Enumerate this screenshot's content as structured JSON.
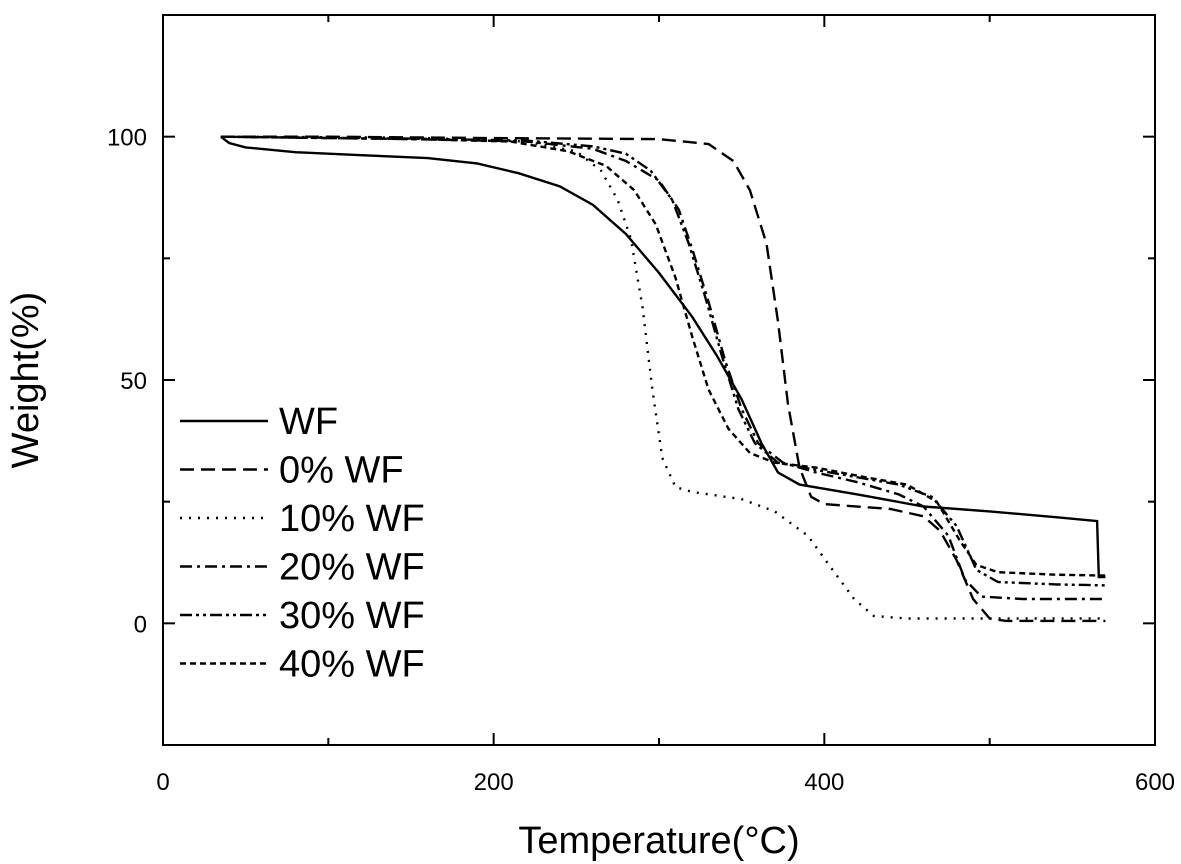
{
  "chart_data": {
    "type": "line",
    "xlabel": "Temperature(°C)",
    "ylabel": "Weight(%)",
    "xlim": [
      0,
      600
    ],
    "ylim": [
      -25,
      125
    ],
    "x_ticks": [
      0,
      200,
      400,
      600
    ],
    "y_ticks": [
      0,
      50,
      100
    ],
    "grid": false,
    "legend_position": "left",
    "series": [
      {
        "name": "WF",
        "dash": "solid",
        "points": [
          [
            35,
            100
          ],
          [
            40,
            98.7
          ],
          [
            50,
            97.8
          ],
          [
            80,
            96.8
          ],
          [
            120,
            96.2
          ],
          [
            160,
            95.6
          ],
          [
            190,
            94.5
          ],
          [
            215,
            92.5
          ],
          [
            240,
            89.8
          ],
          [
            260,
            86
          ],
          [
            280,
            80
          ],
          [
            300,
            72
          ],
          [
            320,
            63
          ],
          [
            335,
            55
          ],
          [
            350,
            46
          ],
          [
            362,
            37
          ],
          [
            372,
            31
          ],
          [
            385,
            28.5
          ],
          [
            420,
            26.5
          ],
          [
            460,
            24
          ],
          [
            500,
            23
          ],
          [
            540,
            21.8
          ],
          [
            565,
            21
          ],
          [
            566,
            9.5
          ],
          [
            570,
            9.5
          ]
        ]
      },
      {
        "name": "0% WF",
        "dash": "long-dash",
        "points": [
          [
            35,
            100
          ],
          [
            100,
            100
          ],
          [
            200,
            99.7
          ],
          [
            300,
            99.5
          ],
          [
            330,
            98.5
          ],
          [
            345,
            95
          ],
          [
            355,
            89
          ],
          [
            365,
            78
          ],
          [
            372,
            62
          ],
          [
            378,
            45
          ],
          [
            385,
            32
          ],
          [
            392,
            26
          ],
          [
            400,
            24.5
          ],
          [
            440,
            23.5
          ],
          [
            460,
            22
          ],
          [
            470,
            19
          ],
          [
            480,
            13
          ],
          [
            490,
            5
          ],
          [
            500,
            1
          ],
          [
            510,
            0.5
          ],
          [
            570,
            0.5
          ]
        ]
      },
      {
        "name": "10% WF",
        "dash": "dotted",
        "points": [
          [
            35,
            100
          ],
          [
            150,
            99.8
          ],
          [
            220,
            99
          ],
          [
            250,
            97
          ],
          [
            265,
            93
          ],
          [
            275,
            87
          ],
          [
            283,
            79
          ],
          [
            290,
            65
          ],
          [
            296,
            48
          ],
          [
            302,
            34
          ],
          [
            310,
            28
          ],
          [
            320,
            27
          ],
          [
            350,
            25.5
          ],
          [
            370,
            23
          ],
          [
            390,
            18
          ],
          [
            405,
            11
          ],
          [
            418,
            5
          ],
          [
            430,
            1.5
          ],
          [
            450,
            1
          ],
          [
            570,
            1
          ]
        ]
      },
      {
        "name": "20% WF",
        "dash": "dash-dot",
        "points": [
          [
            35,
            100
          ],
          [
            150,
            99.5
          ],
          [
            220,
            99
          ],
          [
            260,
            97.5
          ],
          [
            280,
            95
          ],
          [
            300,
            91
          ],
          [
            312,
            85
          ],
          [
            320,
            77
          ],
          [
            330,
            66
          ],
          [
            340,
            54
          ],
          [
            350,
            44
          ],
          [
            360,
            37
          ],
          [
            375,
            33
          ],
          [
            395,
            31
          ],
          [
            420,
            29
          ],
          [
            445,
            26.5
          ],
          [
            460,
            24
          ],
          [
            475,
            18
          ],
          [
            485,
            9
          ],
          [
            495,
            5.5
          ],
          [
            520,
            5
          ],
          [
            570,
            5
          ]
        ]
      },
      {
        "name": "30% WF",
        "dash": "dash-dot-dot",
        "points": [
          [
            35,
            100
          ],
          [
            150,
            99.6
          ],
          [
            220,
            99.2
          ],
          [
            260,
            98
          ],
          [
            280,
            96.5
          ],
          [
            295,
            93
          ],
          [
            308,
            87
          ],
          [
            318,
            78
          ],
          [
            328,
            67
          ],
          [
            338,
            55
          ],
          [
            348,
            44
          ],
          [
            358,
            37
          ],
          [
            372,
            33
          ],
          [
            395,
            31.5
          ],
          [
            420,
            30
          ],
          [
            445,
            28.5
          ],
          [
            465,
            26
          ],
          [
            480,
            20
          ],
          [
            492,
            11
          ],
          [
            505,
            8.5
          ],
          [
            540,
            8
          ],
          [
            570,
            7.8
          ]
        ]
      },
      {
        "name": "40% WF",
        "dash": "short-dash",
        "points": [
          [
            35,
            100
          ],
          [
            150,
            99.5
          ],
          [
            210,
            99
          ],
          [
            245,
            97
          ],
          [
            268,
            94
          ],
          [
            285,
            89
          ],
          [
            298,
            82
          ],
          [
            310,
            71
          ],
          [
            320,
            59
          ],
          [
            330,
            48
          ],
          [
            342,
            40
          ],
          [
            355,
            35
          ],
          [
            370,
            33
          ],
          [
            395,
            32
          ],
          [
            425,
            30
          ],
          [
            450,
            28.5
          ],
          [
            468,
            25
          ],
          [
            482,
            17
          ],
          [
            492,
            12
          ],
          [
            505,
            10.5
          ],
          [
            540,
            10
          ],
          [
            570,
            9.8
          ]
        ]
      }
    ]
  }
}
